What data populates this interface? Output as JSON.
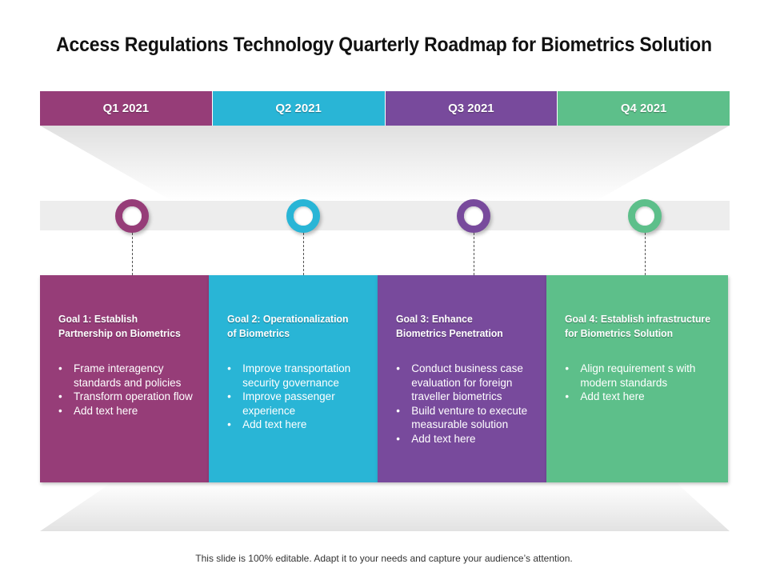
{
  "slide": {
    "title": "Access Regulations Technology Quarterly Roadmap for Biometrics Solution",
    "footer": "This slide is 100% editable. Adapt it to your needs and capture your audience’s attention."
  },
  "colors": {
    "q1": "#963D78",
    "q2": "#29B5D6",
    "q3": "#784A9C",
    "q4": "#5DBF8A"
  },
  "quarters": [
    {
      "label": "Q1 2021"
    },
    {
      "label": "Q2 2021"
    },
    {
      "label": "Q3 2021"
    },
    {
      "label": "Q4 2021"
    }
  ],
  "goals": [
    {
      "title_line1": "Goal 1: Establish",
      "title_line2": "Partnership on Biometrics",
      "bullets": [
        "Frame interagency standards and policies",
        "Transform operation flow",
        "Add text here"
      ]
    },
    {
      "title_line1": "Goal 2: Operationalization",
      "title_line2": "of Biometrics",
      "bullets": [
        "Improve transportation security governance",
        "Improve passenger experience",
        "Add text here"
      ]
    },
    {
      "title_line1": "Goal 3: Enhance",
      "title_line2": "Biometrics Penetration",
      "bullets": [
        "Conduct business case evaluation for foreign traveller biometrics",
        "Build venture to execute measurable solution",
        "Add text here"
      ]
    },
    {
      "title_line1": "Goal 4: Establish infrastructure",
      "title_line2": "for Biometrics Solution",
      "bullets": [
        "Align requirement s with modern standards",
        "Add text here"
      ]
    }
  ]
}
